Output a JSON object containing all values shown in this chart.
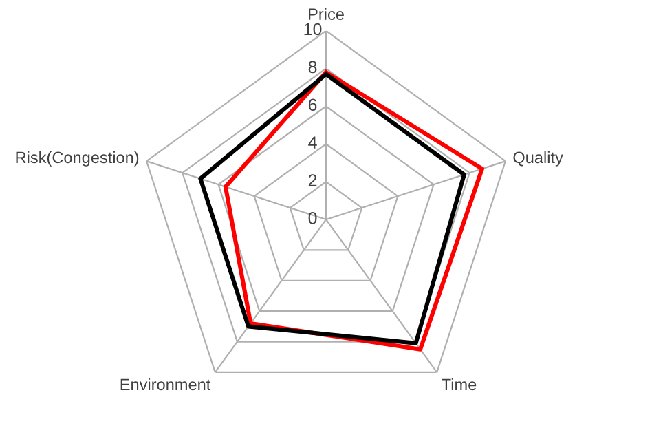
{
  "chart_data": {
    "type": "radar",
    "categories": [
      "Price",
      "Quality",
      "Time",
      "Environment",
      "Risk(Congestion)"
    ],
    "series": [
      {
        "color": "#ff0000",
        "values": [
          7.8,
          8.7,
          8.5,
          6.8,
          5.6
        ]
      },
      {
        "color": "#000000",
        "values": [
          7.7,
          7.7,
          8.1,
          7.0,
          7.0
        ]
      }
    ],
    "ylim": [
      0,
      10
    ],
    "yticks": [
      0,
      2,
      4,
      6,
      8,
      10
    ],
    "grid": true
  }
}
